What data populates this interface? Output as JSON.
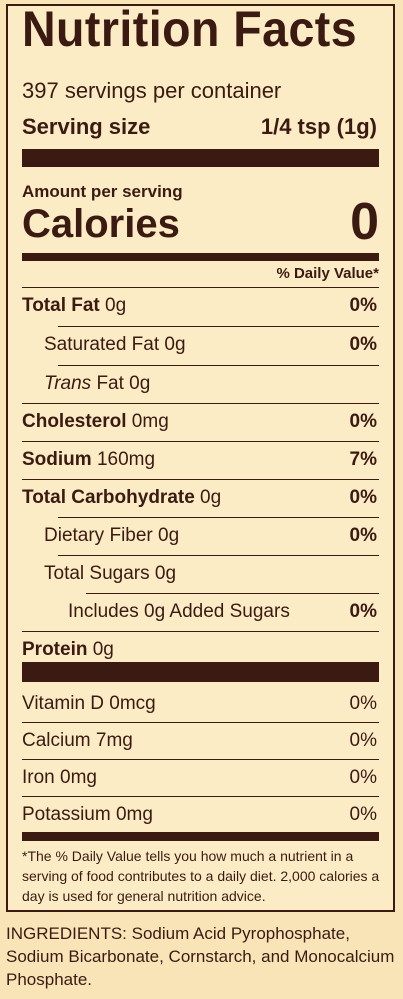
{
  "title": "Nutrition Facts",
  "servings_per_container": "397 servings per container",
  "serving_size_label": "Serving size",
  "serving_size_value": "1/4 tsp (1g)",
  "amount_per_serving": "Amount per serving",
  "calories_label": "Calories",
  "calories_value": "0",
  "daily_value_header": "% Daily Value*",
  "nutrients": [
    {
      "bold": "Total Fat",
      "rest": " 0g",
      "pct": "0%"
    },
    {
      "bold": "",
      "rest": "Saturated Fat 0g",
      "pct": "0%"
    },
    {
      "italic": "Trans",
      "rest": " Fat 0g",
      "pct": ""
    },
    {
      "bold": "Cholesterol",
      "rest": " 0mg",
      "pct": "0%"
    },
    {
      "bold": "Sodium",
      "rest": " 160mg",
      "pct": "7%"
    },
    {
      "bold": "Total Carbohydrate",
      "rest": " 0g",
      "pct": "0%"
    },
    {
      "bold": "",
      "rest": "Dietary Fiber 0g",
      "pct": "0%"
    },
    {
      "bold": "",
      "rest": "Total Sugars 0g",
      "pct": ""
    },
    {
      "bold": "",
      "rest": "Includes 0g Added Sugars",
      "pct": "0%"
    },
    {
      "bold": "Protein",
      "rest": " 0g",
      "pct": ""
    }
  ],
  "vitamins": [
    {
      "name": "Vitamin D 0mcg",
      "pct": "0%"
    },
    {
      "name": "Calcium 7mg",
      "pct": "0%"
    },
    {
      "name": "Iron 0mg",
      "pct": "0%"
    },
    {
      "name": "Potassium 0mg",
      "pct": "0%"
    }
  ],
  "footnote": "*The % Daily Value tells you how much a nutrient in a serving of food contributes to a daily diet. 2,000 calories a day is used for general nutrition advice.",
  "ingredients": "INGREDIENTS: Sodium Acid Pyrophosphate, Sodium Bicarbonate, Cornstarch, and Monocalcium Phosphate.",
  "colors": {
    "ink": "#3b1a12",
    "background": "#f9e4b7"
  }
}
